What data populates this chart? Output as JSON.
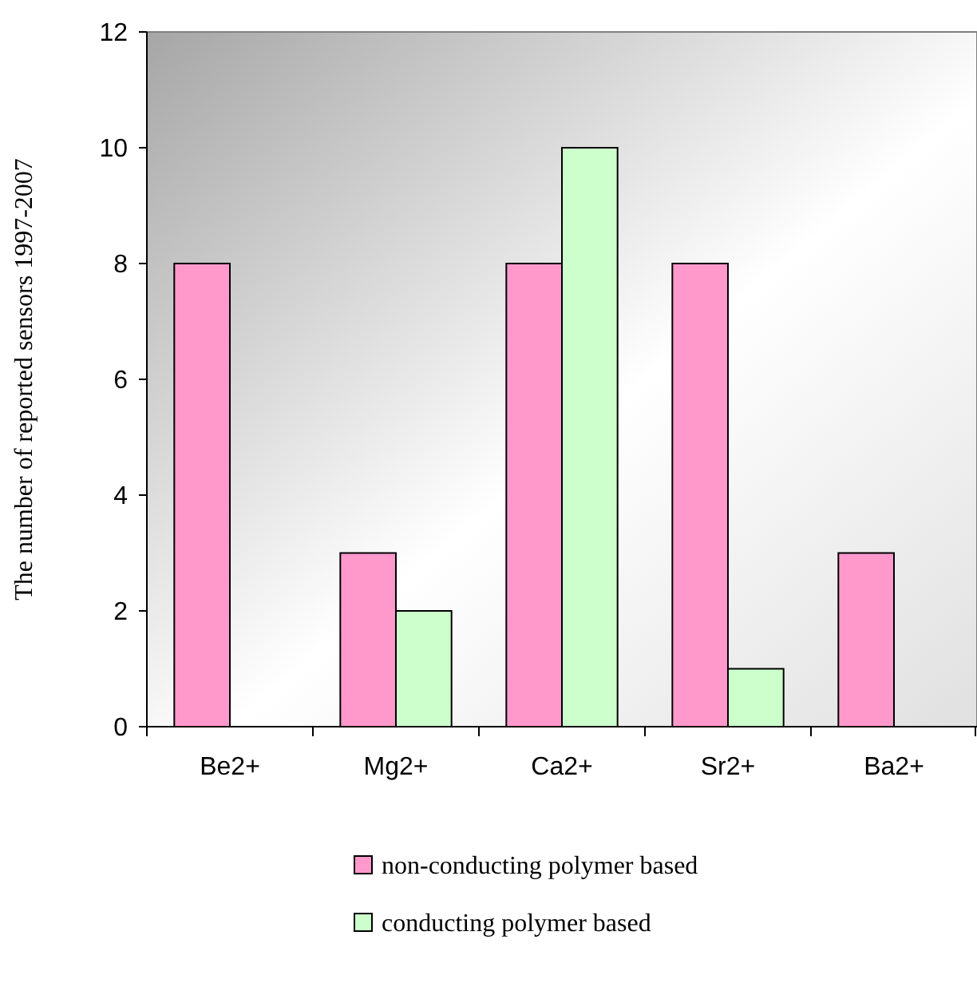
{
  "chart_data": {
    "type": "bar",
    "ylabel": "The number of reported sensors 1997-2007",
    "categories": [
      "Be2+",
      "Mg2+",
      "Ca2+",
      "Sr2+",
      "Ba2+"
    ],
    "series": [
      {
        "name": "non-conducting polymer based",
        "color": "#ff99cc",
        "values": [
          8,
          3,
          8,
          8,
          3
        ]
      },
      {
        "name": "conducting polymer based",
        "color": "#ccffcc",
        "values": [
          null,
          2,
          10,
          1,
          null
        ]
      }
    ],
    "ylim": [
      0,
      12
    ],
    "yticks": [
      0,
      2,
      4,
      6,
      8,
      10,
      12
    ],
    "grid": false,
    "legend": "bottom"
  }
}
